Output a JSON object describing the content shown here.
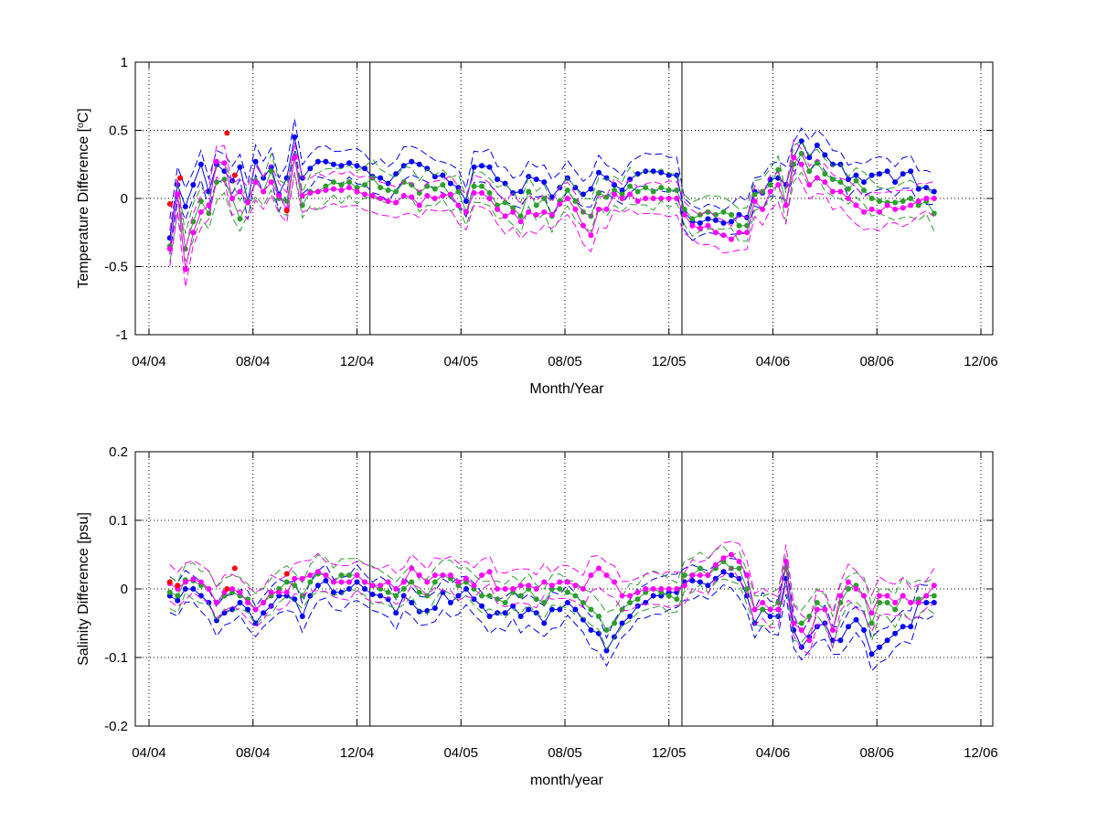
{
  "chart_data": [
    {
      "type": "line",
      "ylabel_main": "Temperature Difference [",
      "ylabel_sup": "o",
      "ylabel_tail": "C]",
      "xlabel": "Month/Year",
      "xlim": [
        0,
        32
      ],
      "ylim": [
        -1,
        1
      ],
      "x_ticks": [
        {
          "x": 0,
          "label": "04/04"
        },
        {
          "x": 4,
          "label": "08/04"
        },
        {
          "x": 8,
          "label": "12/04"
        },
        {
          "x": 12,
          "label": "04/05"
        },
        {
          "x": 16,
          "label": "08/05"
        },
        {
          "x": 20,
          "label": "12/05"
        },
        {
          "x": 24,
          "label": "04/06"
        },
        {
          "x": 28,
          "label": "08/06"
        },
        {
          "x": 32,
          "label": "12/06"
        }
      ],
      "y_ticks": [
        {
          "y": -1,
          "label": "-1"
        },
        {
          "y": -0.5,
          "label": "-0.5"
        },
        {
          "y": 0,
          "label": "0"
        },
        {
          "y": 0.5,
          "label": "0.5"
        },
        {
          "y": 1,
          "label": "1"
        }
      ],
      "grid": "dotted",
      "vertical_lines": [
        8.5,
        20.5
      ],
      "x": [
        0.8,
        1.1,
        1.4,
        1.7,
        2.0,
        2.3,
        2.6,
        2.9,
        3.2,
        3.5,
        3.8,
        4.1,
        4.4,
        4.7,
        5.0,
        5.3,
        5.6,
        5.9,
        6.2,
        6.5,
        6.8,
        7.1,
        7.4,
        7.7,
        8.0,
        8.3,
        8.6,
        8.9,
        9.2,
        9.5,
        9.8,
        10.1,
        10.4,
        10.7,
        11.0,
        11.3,
        11.6,
        11.9,
        12.2,
        12.5,
        12.8,
        13.1,
        13.4,
        13.7,
        14.0,
        14.3,
        14.6,
        14.9,
        15.2,
        15.5,
        15.8,
        16.1,
        16.4,
        16.7,
        17.0,
        17.3,
        17.6,
        17.9,
        18.2,
        18.5,
        18.8,
        19.1,
        19.4,
        19.7,
        20.0,
        20.3,
        20.6,
        20.9,
        21.2,
        21.5,
        21.8,
        22.1,
        22.4,
        22.7,
        23.0,
        23.3,
        23.6,
        23.9,
        24.2,
        24.5,
        24.8,
        25.1,
        25.4,
        25.7,
        26.0,
        26.3,
        26.6,
        26.9,
        27.2,
        27.5,
        27.8,
        28.1,
        28.4,
        28.7,
        29.0,
        29.3,
        29.6,
        29.9,
        30.2
      ],
      "series": [
        {
          "color": "#0000ff",
          "role": "mean",
          "values": [
            -0.29,
            0.1,
            -0.06,
            0.1,
            0.25,
            0.05,
            0.25,
            0.2,
            0.13,
            0.23,
            -0.02,
            0.27,
            0.15,
            0.23,
            0.03,
            0.15,
            0.45,
            0.15,
            0.22,
            0.27,
            0.27,
            0.25,
            0.24,
            0.26,
            0.24,
            0.22,
            0.16,
            0.15,
            0.11,
            0.18,
            0.24,
            0.27,
            0.25,
            0.22,
            0.16,
            0.17,
            0.11,
            0.08,
            -0.02,
            0.23,
            0.24,
            0.23,
            0.14,
            0.11,
            0.04,
            0.05,
            0.16,
            0.14,
            0.12,
            0.01,
            0.08,
            0.15,
            0.08,
            0.03,
            0.07,
            0.19,
            0.15,
            0.1,
            0.06,
            0.14,
            0.18,
            0.2,
            0.2,
            0.19,
            0.17,
            0.17,
            -0.1,
            -0.17,
            -0.18,
            -0.15,
            -0.16,
            -0.18,
            -0.17,
            -0.12,
            -0.14,
            0.05,
            0.04,
            0.14,
            0.15,
            0.1,
            0.3,
            0.42,
            0.3,
            0.39,
            0.32,
            0.25,
            0.25,
            0.14,
            0.17,
            0.12,
            0.17,
            0.18,
            0.2,
            0.12,
            0.18,
            0.2,
            0.07,
            0.08,
            0.05
          ]
        },
        {
          "color": "#2ca02c",
          "role": "mean",
          "values": [
            -0.35,
            0.03,
            -0.37,
            -0.17,
            -0.02,
            -0.11,
            0.12,
            0.14,
            0.0,
            -0.15,
            -0.02,
            0.13,
            0.05,
            0.2,
            0.0,
            -0.02,
            0.3,
            -0.05,
            0.05,
            0.05,
            0.09,
            0.12,
            0.1,
            0.12,
            0.08,
            0.1,
            0.15,
            0.08,
            0.06,
            0.05,
            0.12,
            0.1,
            0.04,
            0.09,
            0.07,
            0.1,
            0.02,
            0.05,
            -0.1,
            0.09,
            0.09,
            0.04,
            -0.05,
            -0.03,
            -0.07,
            -0.13,
            0.05,
            -0.05,
            0.0,
            -0.13,
            -0.02,
            0.06,
            -0.02,
            -0.1,
            -0.13,
            0.04,
            0.01,
            0.06,
            0.03,
            0.09,
            0.05,
            0.08,
            0.05,
            0.08,
            0.06,
            0.06,
            -0.08,
            -0.15,
            -0.12,
            -0.1,
            -0.12,
            -0.1,
            -0.12,
            -0.2,
            -0.2,
            0.03,
            0.05,
            0.1,
            0.21,
            -0.05,
            0.25,
            0.33,
            0.2,
            0.26,
            0.18,
            0.14,
            0.12,
            0.07,
            0.13,
            0.06,
            0.0,
            -0.02,
            -0.03,
            -0.03,
            -0.02,
            0.0,
            -0.05,
            -0.02,
            -0.11
          ]
        },
        {
          "color": "#ff00ff",
          "role": "mean",
          "values": [
            -0.37,
            0.03,
            -0.52,
            -0.25,
            -0.1,
            -0.05,
            0.27,
            0.26,
            0.0,
            0.05,
            -0.03,
            0.12,
            0.05,
            0.12,
            0.02,
            -0.08,
            0.3,
            0.02,
            0.04,
            0.05,
            0.06,
            0.07,
            0.06,
            0.08,
            0.05,
            0.03,
            0.02,
            0.0,
            -0.02,
            -0.03,
            0.02,
            0.01,
            -0.05,
            0.02,
            0.0,
            0.02,
            0.03,
            -0.05,
            -0.1,
            0.04,
            0.04,
            0.0,
            -0.08,
            -0.13,
            -0.1,
            -0.17,
            -0.1,
            -0.12,
            -0.1,
            -0.12,
            -0.04,
            0.0,
            -0.08,
            -0.2,
            -0.27,
            -0.08,
            -0.08,
            0.03,
            0.0,
            0.03,
            -0.02,
            0.0,
            0.0,
            0.0,
            0.0,
            0.0,
            -0.12,
            -0.2,
            -0.22,
            -0.2,
            -0.25,
            -0.27,
            -0.3,
            -0.25,
            -0.25,
            -0.02,
            -0.08,
            0.05,
            0.1,
            -0.05,
            0.3,
            0.25,
            0.1,
            0.15,
            0.12,
            0.05,
            0.05,
            0.0,
            -0.05,
            -0.1,
            -0.08,
            -0.1,
            -0.05,
            -0.08,
            -0.07,
            -0.05,
            -0.02,
            0.0,
            0.0
          ]
        }
      ],
      "extra_points": {
        "color": "#ff0000",
        "x": [
          0.8,
          1.2,
          3.0,
          3.3,
          5.3
        ],
        "y": [
          -0.04,
          0.15,
          0.48,
          0.17,
          -0.09
        ]
      }
    },
    {
      "type": "line",
      "ylabel": "Salinity Difference [psu]",
      "xlabel": "month/year",
      "xlim": [
        0,
        32
      ],
      "ylim": [
        -0.2,
        0.2
      ],
      "x_ticks": [
        {
          "x": 0,
          "label": "04/04"
        },
        {
          "x": 4,
          "label": "08/04"
        },
        {
          "x": 8,
          "label": "12/04"
        },
        {
          "x": 12,
          "label": "04/05"
        },
        {
          "x": 16,
          "label": "08/05"
        },
        {
          "x": 20,
          "label": "12/05"
        },
        {
          "x": 24,
          "label": "04/06"
        },
        {
          "x": 28,
          "label": "08/06"
        },
        {
          "x": 32,
          "label": "12/06"
        }
      ],
      "y_ticks": [
        {
          "y": -0.2,
          "label": "-0.2"
        },
        {
          "y": -0.1,
          "label": "-0.1"
        },
        {
          "y": 0,
          "label": "0"
        },
        {
          "y": 0.1,
          "label": "0.1"
        },
        {
          "y": 0.2,
          "label": "0.2"
        }
      ],
      "grid": "dotted",
      "vertical_lines": [
        8.5,
        20.5
      ],
      "x": [
        0.8,
        1.1,
        1.4,
        1.7,
        2.0,
        2.3,
        2.6,
        2.9,
        3.2,
        3.5,
        3.8,
        4.1,
        4.4,
        4.7,
        5.0,
        5.3,
        5.6,
        5.9,
        6.2,
        6.5,
        6.8,
        7.1,
        7.4,
        7.7,
        8.0,
        8.3,
        8.6,
        8.9,
        9.2,
        9.5,
        9.8,
        10.1,
        10.4,
        10.7,
        11.0,
        11.3,
        11.6,
        11.9,
        12.2,
        12.5,
        12.8,
        13.1,
        13.4,
        13.7,
        14.0,
        14.3,
        14.6,
        14.9,
        15.2,
        15.5,
        15.8,
        16.1,
        16.4,
        16.7,
        17.0,
        17.3,
        17.6,
        17.9,
        18.2,
        18.5,
        18.8,
        19.1,
        19.4,
        19.7,
        20.0,
        20.3,
        20.6,
        20.9,
        21.2,
        21.5,
        21.8,
        22.1,
        22.4,
        22.7,
        23.0,
        23.3,
        23.6,
        23.9,
        24.2,
        24.5,
        24.8,
        25.1,
        25.4,
        25.7,
        26.0,
        26.3,
        26.6,
        26.9,
        27.2,
        27.5,
        27.8,
        28.1,
        28.4,
        28.7,
        29.0,
        29.3,
        29.6,
        29.9,
        30.2
      ],
      "series": [
        {
          "color": "#0000ff",
          "role": "mean",
          "values": [
            -0.01,
            -0.017,
            0.0,
            0.0,
            -0.01,
            -0.02,
            -0.046,
            -0.035,
            -0.03,
            -0.02,
            -0.03,
            -0.05,
            -0.035,
            -0.025,
            -0.01,
            -0.01,
            -0.015,
            -0.04,
            -0.01,
            0.005,
            0.012,
            -0.005,
            -0.005,
            0.0,
            0.01,
            0.0,
            -0.008,
            -0.01,
            -0.015,
            -0.035,
            -0.01,
            -0.02,
            -0.033,
            -0.032,
            -0.028,
            -0.005,
            -0.02,
            -0.01,
            0.0,
            -0.015,
            -0.025,
            -0.04,
            -0.035,
            -0.035,
            -0.025,
            -0.04,
            -0.03,
            -0.035,
            -0.05,
            -0.03,
            -0.03,
            -0.02,
            -0.03,
            -0.045,
            -0.06,
            -0.065,
            -0.09,
            -0.07,
            -0.05,
            -0.04,
            -0.025,
            -0.02,
            -0.01,
            -0.01,
            -0.005,
            -0.005,
            0.01,
            0.012,
            0.01,
            0.005,
            0.015,
            0.025,
            0.02,
            0.015,
            -0.01,
            -0.05,
            -0.03,
            -0.04,
            -0.04,
            0.015,
            -0.06,
            -0.085,
            -0.07,
            -0.055,
            -0.05,
            -0.075,
            -0.075,
            -0.055,
            -0.045,
            -0.06,
            -0.095,
            -0.085,
            -0.075,
            -0.065,
            -0.055,
            -0.055,
            -0.02,
            -0.02,
            -0.02
          ]
        },
        {
          "color": "#2ca02c",
          "role": "mean",
          "values": [
            -0.005,
            -0.01,
            0.013,
            0.012,
            0.005,
            0.0,
            -0.02,
            -0.01,
            -0.005,
            -0.01,
            -0.015,
            -0.03,
            -0.02,
            -0.01,
            0.0,
            0.01,
            0.005,
            -0.01,
            0.01,
            0.022,
            0.02,
            0.01,
            0.02,
            0.02,
            0.02,
            0.01,
            0.005,
            0.0,
            -0.005,
            -0.01,
            0.0,
            0.01,
            -0.005,
            -0.01,
            0.01,
            0.02,
            0.015,
            0.005,
            0.01,
            0.0,
            -0.01,
            -0.01,
            -0.015,
            -0.02,
            -0.005,
            -0.01,
            0.0,
            -0.015,
            -0.02,
            0.0,
            0.0,
            -0.005,
            -0.01,
            -0.02,
            -0.03,
            -0.04,
            -0.06,
            -0.05,
            -0.03,
            -0.02,
            -0.015,
            -0.005,
            0.0,
            -0.005,
            -0.01,
            -0.015,
            0.02,
            0.02,
            0.03,
            0.02,
            0.03,
            0.04,
            0.03,
            0.03,
            0.0,
            -0.03,
            -0.03,
            -0.03,
            -0.02,
            0.03,
            -0.05,
            -0.05,
            -0.04,
            -0.02,
            -0.03,
            -0.06,
            -0.02,
            0.0,
            0.005,
            -0.01,
            -0.05,
            -0.02,
            -0.02,
            -0.03,
            -0.01,
            -0.02,
            -0.015,
            -0.01,
            -0.01
          ]
        },
        {
          "color": "#ff00ff",
          "role": "mean",
          "values": [
            0.008,
            0.0,
            0.01,
            0.014,
            0.01,
            0.0,
            -0.02,
            -0.005,
            0.0,
            -0.005,
            -0.02,
            -0.03,
            -0.02,
            -0.005,
            -0.005,
            -0.005,
            0.015,
            0.015,
            0.02,
            0.025,
            0.02,
            0.01,
            0.01,
            0.01,
            0.02,
            0.01,
            0.005,
            0.005,
            0.01,
            0.0,
            0.01,
            0.03,
            0.02,
            0.01,
            0.02,
            0.02,
            0.02,
            0.01,
            0.015,
            0.005,
            0.02,
            0.025,
            0.0,
            0.0,
            0.0,
            0.005,
            0.005,
            0.0,
            0.01,
            0.005,
            0.01,
            0.01,
            0.005,
            0.0,
            0.02,
            0.03,
            0.02,
            0.01,
            -0.01,
            -0.01,
            -0.005,
            0.0,
            0.0,
            0.0,
            0.0,
            0.0,
            0.005,
            0.02,
            0.02,
            0.02,
            0.035,
            0.045,
            0.05,
            0.04,
            0.02,
            -0.03,
            -0.02,
            -0.03,
            -0.03,
            0.04,
            -0.05,
            -0.06,
            -0.075,
            -0.03,
            -0.03,
            -0.06,
            -0.01,
            0.01,
            0.0,
            -0.01,
            -0.035,
            -0.01,
            -0.01,
            -0.02,
            -0.01,
            -0.02,
            -0.02,
            -0.01,
            0.005
          ]
        }
      ],
      "extra_points": {
        "color": "#ff0000",
        "x": [
          0.8,
          1.1,
          3.0,
          3.3,
          5.3
        ],
        "y": [
          0.01,
          0.005,
          0.0,
          0.03,
          0.022
        ]
      }
    }
  ]
}
